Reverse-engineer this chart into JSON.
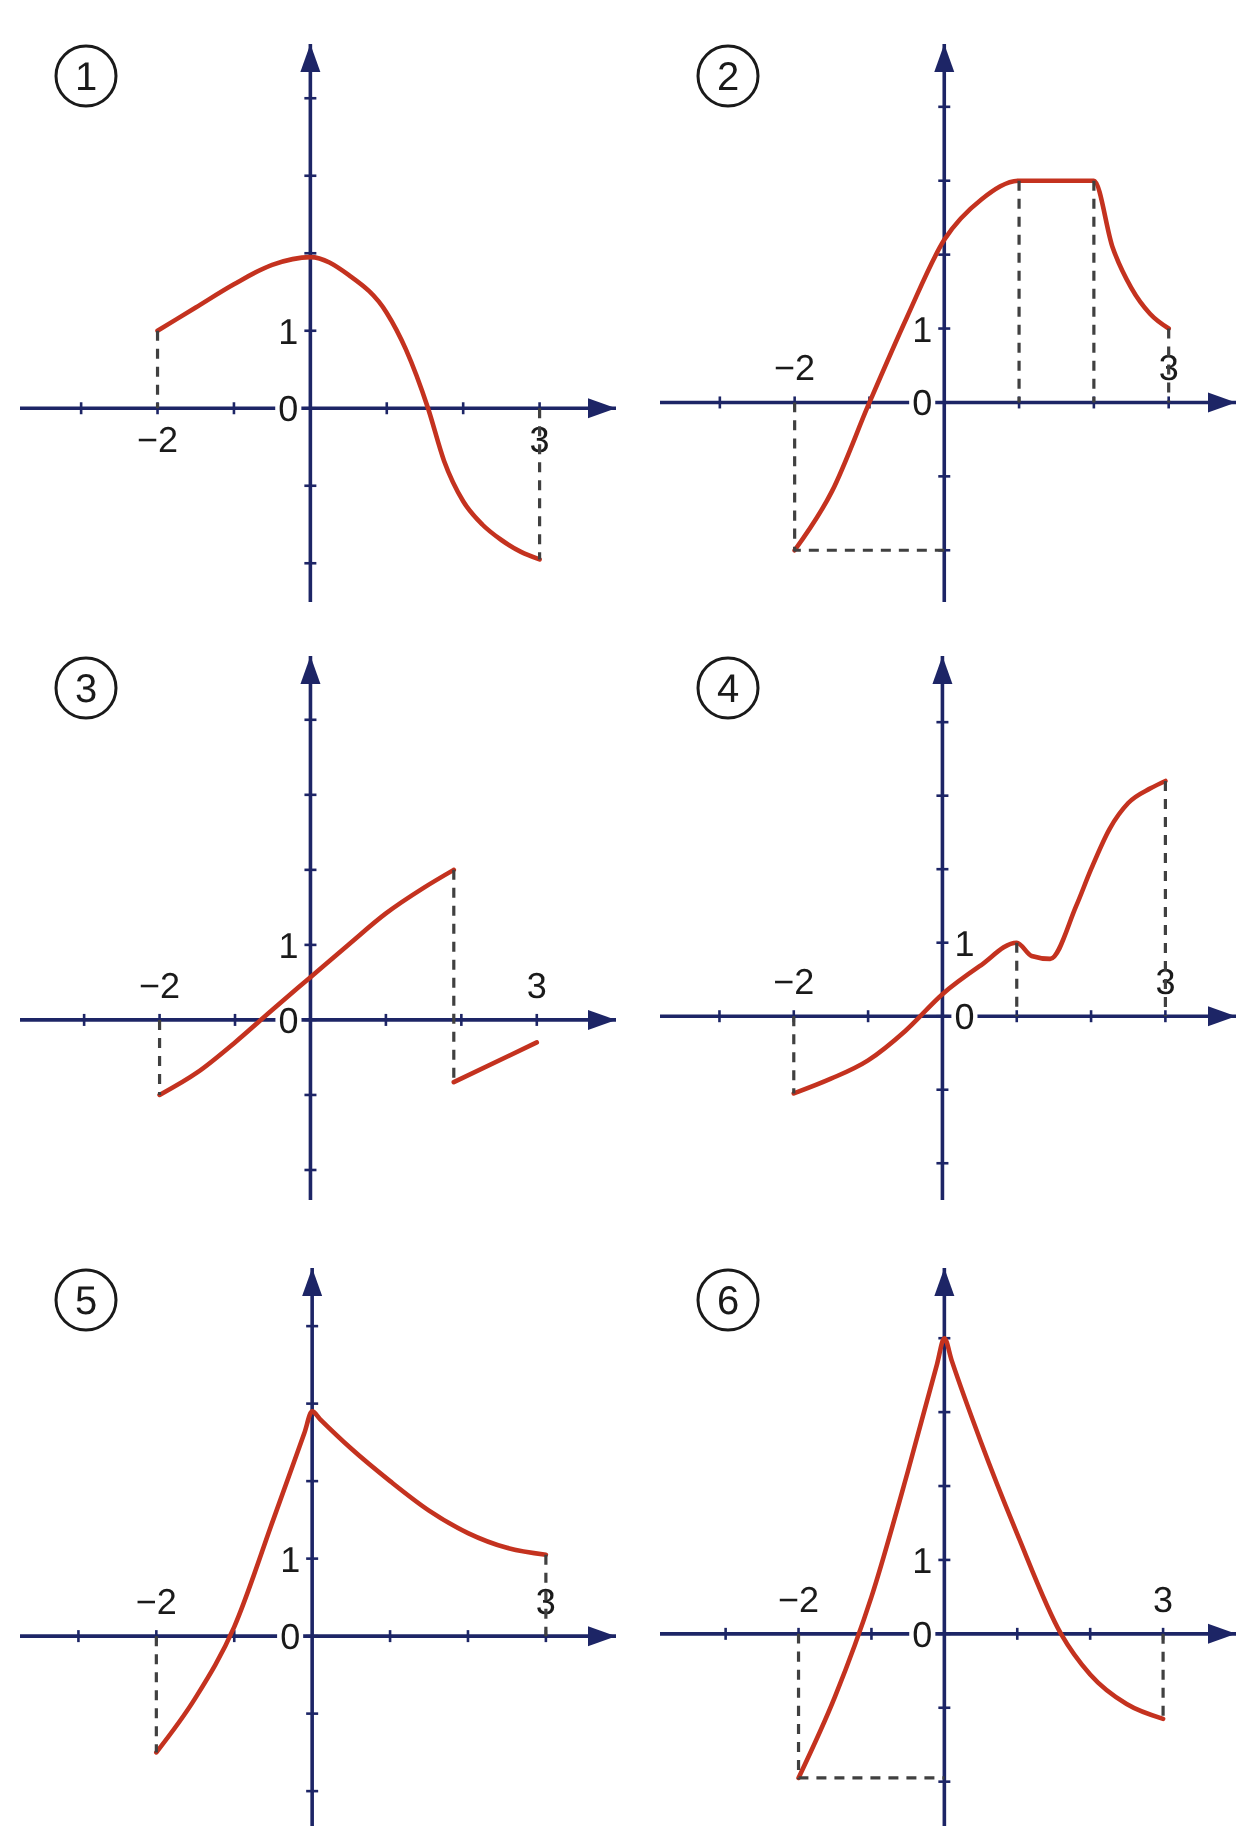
{
  "chart_data": [
    {
      "type": "line",
      "title": "1",
      "xlim": [
        -3.8,
        4
      ],
      "ylim": [
        -2.5,
        4.7
      ],
      "xticks": [
        {
          "value": -3,
          "label": null
        },
        {
          "value": -2,
          "label": "−2"
        },
        {
          "value": -1,
          "label": null
        },
        {
          "value": 1,
          "label": null
        },
        {
          "value": 2,
          "label": null
        },
        {
          "value": 3,
          "label": "3"
        }
      ],
      "yticks": [
        {
          "value": -2,
          "label": null
        },
        {
          "value": -1,
          "label": null
        },
        {
          "value": 0,
          "label": "0"
        },
        {
          "value": 1,
          "label": "1"
        },
        {
          "value": 2,
          "label": null
        },
        {
          "value": 3,
          "label": null
        },
        {
          "value": 4,
          "label": null
        }
      ],
      "series": [
        {
          "color": "#c4321f",
          "x": [
            -2,
            -1.5,
            -1,
            -0.5,
            0,
            0.5,
            1,
            1.25,
            1.54,
            1.75,
            2,
            2.25,
            2.5,
            2.75,
            3
          ],
          "values": [
            1,
            1.3,
            1.6,
            1.85,
            1.95,
            1.72,
            1.23,
            0.76,
            0,
            -0.68,
            -1.2,
            -1.5,
            -1.7,
            -1.85,
            -1.95
          ]
        },
        {
          "color": "#404040",
          "line_style": "dashed",
          "x": [
            -2,
            -2
          ],
          "values": [
            1,
            0
          ]
        },
        {
          "color": "#404040",
          "line_style": "dashed",
          "x": [
            3,
            3
          ],
          "values": [
            0,
            -1.95
          ]
        }
      ]
    },
    {
      "type": "line",
      "title": "2",
      "xlim": [
        -3.8,
        3.9
      ],
      "ylim": [
        -2.7,
        4.85
      ],
      "xticks": [
        {
          "value": -3,
          "label": null
        },
        {
          "value": -2,
          "label": "−2"
        },
        {
          "value": -1,
          "label": null
        },
        {
          "value": 1,
          "label": null
        },
        {
          "value": 2,
          "label": null
        },
        {
          "value": 3,
          "label": "3"
        }
      ],
      "yticks": [
        {
          "value": -2,
          "label": null
        },
        {
          "value": -1,
          "label": null
        },
        {
          "value": 0,
          "label": "0"
        },
        {
          "value": 1,
          "label": "1"
        },
        {
          "value": 2,
          "label": null
        },
        {
          "value": 3,
          "label": null
        },
        {
          "value": 4,
          "label": null
        }
      ],
      "series": [
        {
          "color": "#c4321f",
          "x": [
            -2,
            -1.5,
            -1,
            -0.5,
            0,
            0.5,
            1,
            2,
            2.25,
            2.5,
            2.75,
            3
          ],
          "values": [
            -2,
            -1.2,
            0,
            1.15,
            2.2,
            2.75,
            3,
            3,
            2.1,
            1.55,
            1.2,
            1
          ]
        },
        {
          "color": "#404040",
          "line_style": "dashed",
          "x": [
            -2,
            -2,
            0
          ],
          "values": [
            0,
            -2,
            -2
          ]
        },
        {
          "color": "#404040",
          "line_style": "dashed",
          "x": [
            1,
            1
          ],
          "values": [
            3,
            0
          ]
        },
        {
          "color": "#404040",
          "line_style": "dashed",
          "x": [
            2,
            2
          ],
          "values": [
            3,
            0
          ]
        },
        {
          "color": "#404040",
          "line_style": "dashed",
          "x": [
            3,
            3
          ],
          "values": [
            1,
            0
          ]
        }
      ]
    },
    {
      "type": "line",
      "title": "3",
      "xlim": [
        -3.85,
        4.05
      ],
      "ylim": [
        -2.4,
        4.85
      ],
      "xticks": [
        {
          "value": -3,
          "label": null
        },
        {
          "value": -2,
          "label": "−2"
        },
        {
          "value": -1,
          "label": null
        },
        {
          "value": 1,
          "label": null
        },
        {
          "value": 2,
          "label": null
        },
        {
          "value": 3,
          "label": "3"
        }
      ],
      "yticks": [
        {
          "value": -2,
          "label": null
        },
        {
          "value": -1,
          "label": null
        },
        {
          "value": 0,
          "label": "0"
        },
        {
          "value": 1,
          "label": "1"
        },
        {
          "value": 2,
          "label": null
        },
        {
          "value": 3,
          "label": null
        },
        {
          "value": 4,
          "label": null
        }
      ],
      "series": [
        {
          "color": "#c4321f",
          "x": [
            -2,
            -1.5,
            -1,
            -0.5,
            0,
            0.5,
            1,
            1.5,
            1.9
          ],
          "values": [
            -1,
            -0.7,
            -0.3,
            0.14,
            0.57,
            1,
            1.42,
            1.76,
            2
          ]
        },
        {
          "color": "#c4321f",
          "x": [
            1.9,
            3
          ],
          "values": [
            -0.83,
            -0.3
          ]
        },
        {
          "color": "#404040",
          "line_style": "dashed",
          "x": [
            -2,
            -2
          ],
          "values": [
            0,
            -1
          ]
        },
        {
          "color": "#404040",
          "line_style": "dashed",
          "x": [
            1.9,
            1.9
          ],
          "values": [
            2,
            -0.83
          ]
        }
      ]
    },
    {
      "type": "line",
      "title": "4",
      "xlim": [
        -3.8,
        3.95
      ],
      "ylim": [
        -2.5,
        4.9
      ],
      "xticks": [
        {
          "value": -3,
          "label": null
        },
        {
          "value": -2,
          "label": "−2"
        },
        {
          "value": -1,
          "label": null
        },
        {
          "value": 1,
          "label": null
        },
        {
          "value": 2,
          "label": null
        },
        {
          "value": 3,
          "label": "3"
        }
      ],
      "yticks": [
        {
          "value": -2,
          "label": null
        },
        {
          "value": -1,
          "label": null
        },
        {
          "value": 0,
          "label": "0"
        },
        {
          "value": 1,
          "label": "1"
        },
        {
          "value": 2,
          "label": null
        },
        {
          "value": 3,
          "label": null
        },
        {
          "value": 4,
          "label": null
        }
      ],
      "series": [
        {
          "color": "#c4321f",
          "x": [
            -2,
            -1.5,
            -1,
            -0.5,
            0,
            0.5,
            1,
            1.2,
            1.45,
            1.8,
            2,
            2.25,
            2.5,
            2.8,
            3
          ],
          "values": [
            -1.05,
            -0.85,
            -0.6,
            -0.2,
            0.3,
            0.68,
            1,
            0.82,
            0.78,
            1.5,
            2,
            2.55,
            2.9,
            3.1,
            3.2
          ]
        },
        {
          "color": "#404040",
          "line_style": "dashed",
          "x": [
            -2,
            -2
          ],
          "values": [
            0,
            -1.05
          ]
        },
        {
          "color": "#404040",
          "line_style": "dashed",
          "x": [
            1,
            1
          ],
          "values": [
            1,
            0
          ]
        },
        {
          "color": "#404040",
          "line_style": "dashed",
          "x": [
            3,
            3
          ],
          "values": [
            3.2,
            0
          ]
        }
      ]
    },
    {
      "type": "line",
      "title": "5",
      "xlim": [
        -3.75,
        3.9
      ],
      "ylim": [
        -2.45,
        4.75
      ],
      "xticks": [
        {
          "value": -3,
          "label": null
        },
        {
          "value": -2,
          "label": "−2"
        },
        {
          "value": -1,
          "label": null
        },
        {
          "value": 1,
          "label": null
        },
        {
          "value": 2,
          "label": null
        },
        {
          "value": 3,
          "label": "3"
        }
      ],
      "yticks": [
        {
          "value": -2,
          "label": null
        },
        {
          "value": -1,
          "label": null
        },
        {
          "value": 0,
          "label": "0"
        },
        {
          "value": 1,
          "label": "1"
        },
        {
          "value": 2,
          "label": null
        },
        {
          "value": 3,
          "label": null
        },
        {
          "value": 4,
          "label": null
        }
      ],
      "series": [
        {
          "color": "#c4321f",
          "x": [
            -2,
            -1.5,
            -1,
            -0.5,
            -0.1,
            0,
            0.1,
            0.5,
            1,
            1.5,
            2,
            2.5,
            3
          ],
          "values": [
            -1.5,
            -0.8,
            0.12,
            1.5,
            2.62,
            2.9,
            2.8,
            2.42,
            2,
            1.62,
            1.33,
            1.14,
            1.05
          ]
        },
        {
          "color": "#404040",
          "line_style": "dashed",
          "x": [
            -2,
            -2
          ],
          "values": [
            0,
            -1.5
          ]
        },
        {
          "color": "#404040",
          "line_style": "dashed",
          "x": [
            3,
            3
          ],
          "values": [
            1.05,
            0
          ]
        }
      ]
    },
    {
      "type": "line",
      "title": "6",
      "xlim": [
        -3.9,
        4
      ],
      "ylim": [
        -2.6,
        4.95
      ],
      "xticks": [
        {
          "value": -3,
          "label": null
        },
        {
          "value": -2,
          "label": "−2"
        },
        {
          "value": -1,
          "label": null
        },
        {
          "value": 1,
          "label": null
        },
        {
          "value": 2,
          "label": null
        },
        {
          "value": 3,
          "label": "3"
        }
      ],
      "yticks": [
        {
          "value": -2,
          "label": null
        },
        {
          "value": -1,
          "label": null
        },
        {
          "value": 0,
          "label": "0"
        },
        {
          "value": 1,
          "label": "1"
        },
        {
          "value": 2,
          "label": null
        },
        {
          "value": 3,
          "label": null
        },
        {
          "value": 4,
          "label": null
        }
      ],
      "series": [
        {
          "color": "#c4321f",
          "x": [
            -2,
            -1.5,
            -1,
            -0.5,
            -0.1,
            0,
            0.1,
            0.5,
            1,
            1.6,
            2,
            2.5,
            3
          ],
          "values": [
            -1.95,
            -0.85,
            0.5,
            2.2,
            3.65,
            4,
            3.7,
            2.6,
            1.35,
            0,
            -0.55,
            -0.95,
            -1.15
          ]
        },
        {
          "color": "#404040",
          "line_style": "dashed",
          "x": [
            -2,
            -2,
            0
          ],
          "values": [
            0,
            -1.95,
            -1.95
          ]
        },
        {
          "color": "#404040",
          "line_style": "dashed",
          "x": [
            3,
            3
          ],
          "values": [
            0,
            -1.15
          ]
        }
      ]
    }
  ]
}
